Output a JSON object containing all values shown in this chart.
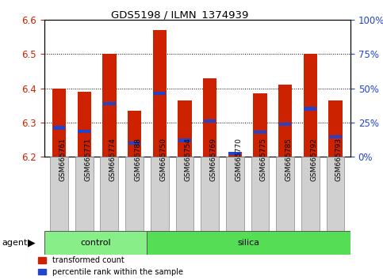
{
  "title": "GDS5198 / ILMN_1374939",
  "samples": [
    "GSM665761",
    "GSM665771",
    "GSM665774",
    "GSM665788",
    "GSM665750",
    "GSM665754",
    "GSM665769",
    "GSM665770",
    "GSM665775",
    "GSM665785",
    "GSM665792",
    "GSM665793"
  ],
  "control_count": 4,
  "red_values": [
    6.4,
    6.39,
    6.5,
    6.335,
    6.57,
    6.365,
    6.43,
    6.215,
    6.385,
    6.41,
    6.5,
    6.365
  ],
  "blue_values": [
    6.285,
    6.275,
    6.355,
    6.24,
    6.385,
    6.248,
    6.305,
    6.21,
    6.272,
    6.295,
    6.34,
    6.258
  ],
  "ymin": 6.2,
  "ymax": 6.6,
  "yticks_left": [
    6.2,
    6.3,
    6.4,
    6.5,
    6.6
  ],
  "yticks_right_pct": [
    0,
    25,
    50,
    75,
    100
  ],
  "bar_width": 0.55,
  "bar_color": "#cc2200",
  "blue_color": "#2244cc",
  "control_color": "#88ee88",
  "silica_color": "#55dd55",
  "agent_label": "agent",
  "control_label": "control",
  "silica_label": "silica",
  "legend1": "transformed count",
  "legend2": "percentile rank within the sample",
  "ylabel_left_color": "#cc2200",
  "ylabel_right_color": "#2244cc",
  "gray_box": "#d0d0d0"
}
